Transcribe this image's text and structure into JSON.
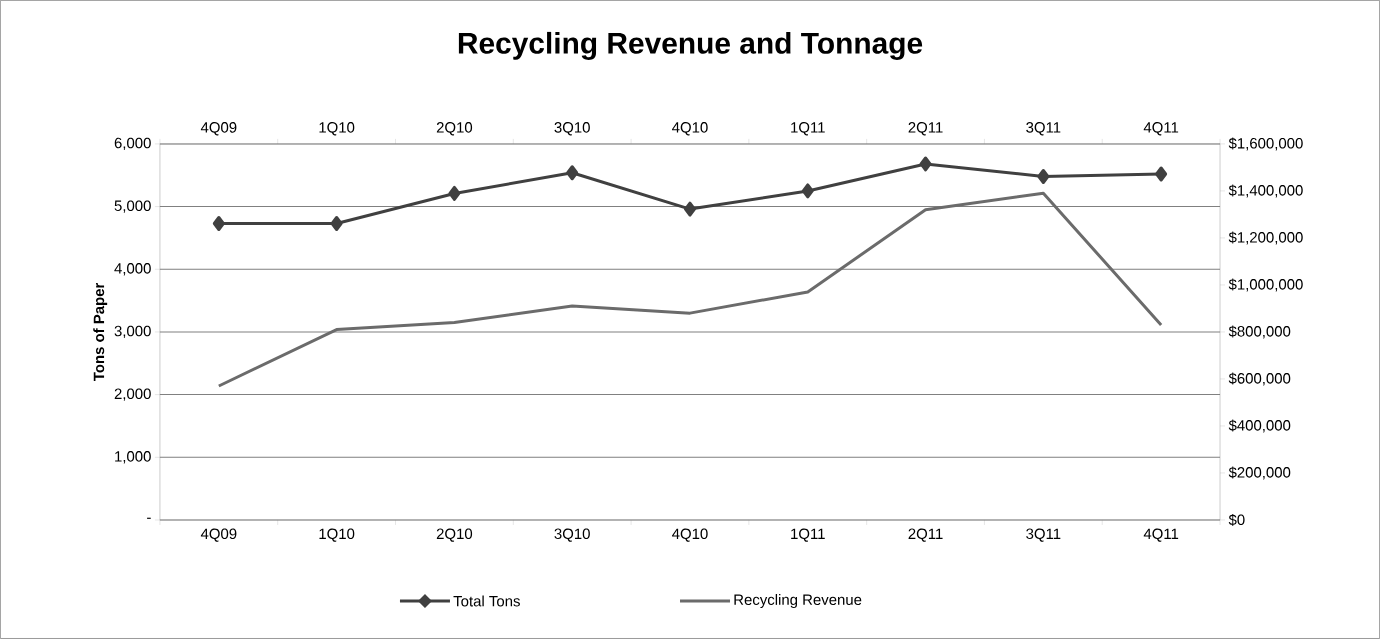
{
  "chart_data": {
    "type": "line",
    "title": "Recycling Revenue and Tonnage",
    "ylabel": "Tons of Paper",
    "categories": [
      "4Q09",
      "1Q10",
      "2Q10",
      "3Q10",
      "4Q10",
      "1Q11",
      "2Q11",
      "3Q11",
      "4Q11"
    ],
    "series": [
      {
        "name": "Total Tons",
        "color": "#404040",
        "marker": "diamond",
        "values": [
          4730,
          4730,
          5210,
          5540,
          4960,
          5250,
          5680,
          5480,
          5520
        ]
      },
      {
        "name": "Recycling Revenue",
        "color": "#6b6b6b",
        "marker": "none",
        "axis": "y2",
        "values": [
          570000,
          810000,
          840000,
          910000,
          880000,
          970000,
          1320000,
          1390000,
          830000
        ]
      }
    ],
    "ylim": [
      0,
      6000
    ],
    "yticks": [
      {
        "value": 0,
        "label": "-"
      },
      {
        "value": 1000,
        "label": "1,000"
      },
      {
        "value": 2000,
        "label": "2,000"
      },
      {
        "value": 3000,
        "label": "3,000"
      },
      {
        "value": 4000,
        "label": "4,000"
      },
      {
        "value": 5000,
        "label": "5,000"
      },
      {
        "value": 6000,
        "label": "6,000"
      }
    ],
    "y2lim": [
      0,
      1600000
    ],
    "y2ticks": [
      {
        "value": 0,
        "label": "$0"
      },
      {
        "value": 200000,
        "label": "$200,000"
      },
      {
        "value": 400000,
        "label": "$400,000"
      },
      {
        "value": 600000,
        "label": "$600,000"
      },
      {
        "value": 800000,
        "label": "$800,000"
      },
      {
        "value": 1000000,
        "label": "$1,000,000"
      },
      {
        "value": 1200000,
        "label": "$1,200,000"
      },
      {
        "value": 1400000,
        "label": "$1,400,000"
      },
      {
        "value": 1600000,
        "label": "$1,600,000"
      }
    ],
    "grid": "y",
    "legend": "bottom"
  }
}
